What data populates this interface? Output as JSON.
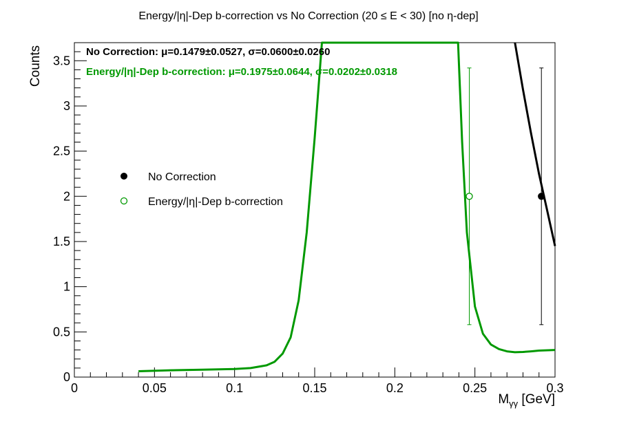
{
  "chart_data": {
    "type": "line",
    "title": "Energy/|η|-Dep b-correction vs No Correction   (20 ≤ E < 30)   [no η-dep]",
    "xlabel": "M",
    "xlabel_sub": "γγ",
    "xlabel_unit": " [GeV]",
    "ylabel": "Counts",
    "xlim": [
      0,
      0.3
    ],
    "ylim": [
      0,
      3.7
    ],
    "x_ticks": [
      0,
      0.05,
      0.1,
      0.15,
      0.2,
      0.25,
      0.3
    ],
    "x_tick_labels": [
      "0",
      "0.05",
      "0.1",
      "0.15",
      "0.2",
      "0.25",
      "0.3"
    ],
    "y_ticks": [
      0,
      0.5,
      1,
      1.5,
      2,
      2.5,
      3,
      3.5
    ],
    "y_tick_labels": [
      "0",
      "0.5",
      "1",
      "1.5",
      "2",
      "2.5",
      "3",
      "3.5"
    ],
    "grid": false,
    "legend_position": "center-left",
    "stats_lines": [
      {
        "text": "No Correction: μ=0.1479±0.0527, σ=0.0600±0.0260",
        "color": "#000000"
      },
      {
        "text": "Energy/|η|-Dep b-correction: μ=0.1975±0.0644, σ=0.0202±0.0318",
        "color": "#009900"
      }
    ],
    "series": [
      {
        "name": "No Correction",
        "color": "#000000",
        "marker": "filled-circle",
        "points": [
          {
            "x": 0.2915,
            "y": 2.0,
            "y_err": 1.42
          }
        ],
        "fit_curve": [
          [
            0.275,
            3.7
          ],
          [
            0.28,
            3.18
          ],
          [
            0.285,
            2.7
          ],
          [
            0.29,
            2.25
          ],
          [
            0.295,
            1.85
          ],
          [
            0.3,
            1.45
          ]
        ]
      },
      {
        "name": "Energy/|η|-Dep b-correction",
        "color": "#009900",
        "marker": "open-circle",
        "points": [
          {
            "x": 0.2465,
            "y": 2.0,
            "y_err": 1.42
          }
        ],
        "fit_curve": [
          [
            0.04,
            0.065
          ],
          [
            0.06,
            0.075
          ],
          [
            0.08,
            0.082
          ],
          [
            0.1,
            0.09
          ],
          [
            0.11,
            0.1
          ],
          [
            0.12,
            0.13
          ],
          [
            0.125,
            0.17
          ],
          [
            0.13,
            0.26
          ],
          [
            0.135,
            0.44
          ],
          [
            0.14,
            0.85
          ],
          [
            0.145,
            1.6
          ],
          [
            0.15,
            2.65
          ],
          [
            0.1545,
            3.7
          ],
          [
            0.2395,
            3.7
          ],
          [
            0.242,
            2.6
          ],
          [
            0.245,
            1.6
          ],
          [
            0.25,
            0.78
          ],
          [
            0.255,
            0.48
          ],
          [
            0.26,
            0.36
          ],
          [
            0.265,
            0.31
          ],
          [
            0.27,
            0.285
          ],
          [
            0.275,
            0.275
          ],
          [
            0.28,
            0.278
          ],
          [
            0.285,
            0.285
          ],
          [
            0.29,
            0.293
          ],
          [
            0.3,
            0.3
          ]
        ]
      }
    ]
  }
}
